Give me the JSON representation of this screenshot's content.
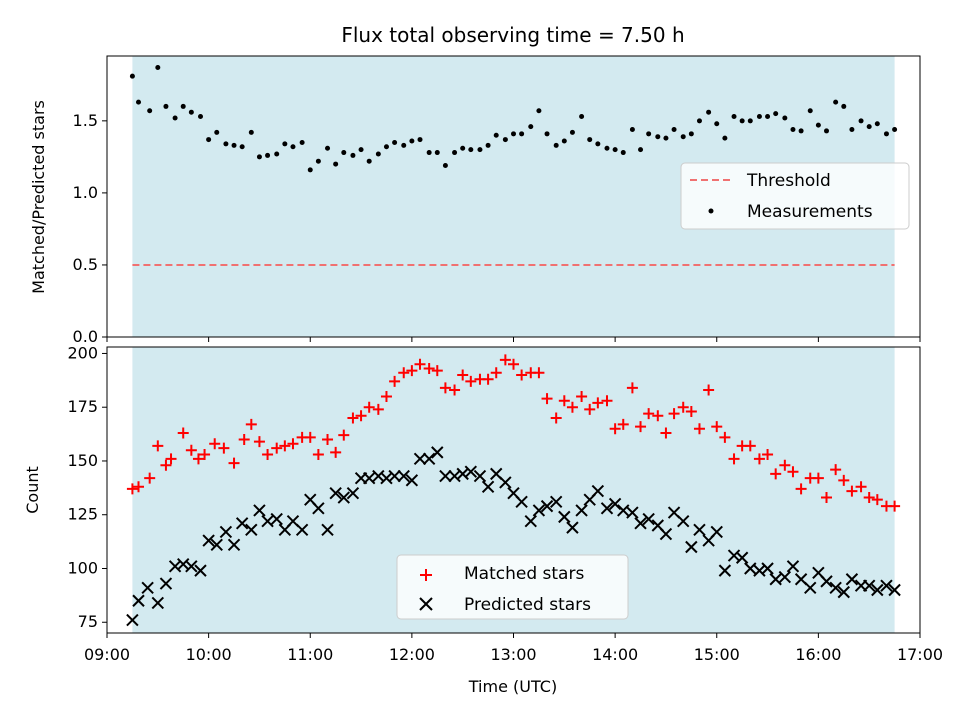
{
  "chart_data": [
    {
      "type": "scatter",
      "title": "Flux total observing time = 7.50 h",
      "ylabel": "Matched/Predicted stars",
      "ylim": [
        0,
        1.95
      ],
      "yticks": [
        0.0,
        0.5,
        1.0,
        1.5
      ],
      "ytick_labels": [
        "0.0",
        "0.5",
        "1.0",
        "1.5"
      ],
      "xlim": [
        9.0,
        17.0
      ],
      "shaded_span": [
        9.25,
        16.75
      ],
      "shade_color": "#d3eaf0",
      "legend_position": "center-right",
      "series": [
        {
          "name": "Threshold",
          "style": "dashed-line",
          "color": "#f07171",
          "x": [
            9.25,
            16.75
          ],
          "y": [
            0.5,
            0.5
          ]
        },
        {
          "name": "Measurements",
          "style": "dot",
          "color": "#000000",
          "x": [
            9.25,
            9.31,
            9.42,
            9.5,
            9.58,
            9.67,
            9.75,
            9.83,
            9.92,
            10.0,
            10.08,
            10.17,
            10.25,
            10.33,
            10.42,
            10.5,
            10.58,
            10.67,
            10.75,
            10.83,
            10.92,
            11.0,
            11.08,
            11.17,
            11.25,
            11.33,
            11.42,
            11.5,
            11.58,
            11.67,
            11.75,
            11.83,
            11.92,
            12.0,
            12.08,
            12.17,
            12.25,
            12.33,
            12.42,
            12.5,
            12.58,
            12.67,
            12.75,
            12.83,
            12.92,
            13.0,
            13.08,
            13.17,
            13.25,
            13.33,
            13.42,
            13.5,
            13.58,
            13.67,
            13.75,
            13.83,
            13.92,
            14.0,
            14.08,
            14.17,
            14.25,
            14.33,
            14.42,
            14.5,
            14.58,
            14.67,
            14.75,
            14.83,
            14.92,
            15.0,
            15.08,
            15.17,
            15.25,
            15.33,
            15.42,
            15.5,
            15.58,
            15.67,
            15.75,
            15.83,
            15.92,
            16.0,
            16.08,
            16.17,
            16.25,
            16.33,
            16.42,
            16.5,
            16.58,
            16.67,
            16.75
          ],
          "y": [
            1.81,
            1.63,
            1.57,
            1.87,
            1.6,
            1.52,
            1.6,
            1.56,
            1.53,
            1.37,
            1.42,
            1.34,
            1.33,
            1.32,
            1.42,
            1.25,
            1.26,
            1.27,
            1.34,
            1.32,
            1.35,
            1.16,
            1.22,
            1.31,
            1.2,
            1.28,
            1.26,
            1.3,
            1.22,
            1.27,
            1.32,
            1.35,
            1.33,
            1.36,
            1.37,
            1.28,
            1.28,
            1.19,
            1.28,
            1.31,
            1.3,
            1.3,
            1.33,
            1.4,
            1.37,
            1.41,
            1.41,
            1.46,
            1.57,
            1.41,
            1.33,
            1.36,
            1.42,
            1.53,
            1.37,
            1.34,
            1.31,
            1.3,
            1.28,
            1.44,
            1.3,
            1.41,
            1.39,
            1.38,
            1.44,
            1.39,
            1.41,
            1.5,
            1.56,
            1.48,
            1.38,
            1.53,
            1.5,
            1.5,
            1.53,
            1.53,
            1.55,
            1.52,
            1.44,
            1.43,
            1.57,
            1.47,
            1.43,
            1.63,
            1.6,
            1.44,
            1.5,
            1.46,
            1.48,
            1.41,
            1.44
          ]
        }
      ]
    },
    {
      "type": "scatter",
      "xlabel": "Time (UTC)",
      "ylabel": "Count",
      "ylim": [
        70,
        203
      ],
      "yticks": [
        75,
        100,
        125,
        150,
        175,
        200
      ],
      "ytick_labels": [
        "75",
        "100",
        "125",
        "150",
        "175",
        "200"
      ],
      "xlim": [
        9.0,
        17.0
      ],
      "xticks": [
        9,
        10,
        11,
        12,
        13,
        14,
        15,
        16,
        17
      ],
      "xtick_labels": [
        "09:00",
        "10:00",
        "11:00",
        "12:00",
        "13:00",
        "14:00",
        "15:00",
        "16:00",
        "17:00"
      ],
      "shaded_span": [
        9.25,
        16.75
      ],
      "shade_color": "#d3eaf0",
      "legend_position": "lower-center",
      "series": [
        {
          "name": "Matched stars",
          "marker": "plus",
          "color": "#ff0000",
          "x": [
            9.25,
            9.31,
            9.42,
            9.5,
            9.58,
            9.63,
            9.75,
            9.83,
            9.9,
            9.96,
            10.06,
            10.15,
            10.25,
            10.35,
            10.42,
            10.5,
            10.58,
            10.67,
            10.75,
            10.83,
            10.92,
            11.0,
            11.08,
            11.17,
            11.25,
            11.33,
            11.42,
            11.5,
            11.58,
            11.67,
            11.75,
            11.83,
            11.92,
            12.0,
            12.08,
            12.17,
            12.25,
            12.33,
            12.42,
            12.5,
            12.58,
            12.67,
            12.75,
            12.83,
            12.92,
            13.0,
            13.08,
            13.17,
            13.25,
            13.33,
            13.42,
            13.5,
            13.58,
            13.67,
            13.75,
            13.83,
            13.92,
            14.0,
            14.08,
            14.17,
            14.25,
            14.33,
            14.42,
            14.5,
            14.58,
            14.67,
            14.75,
            14.83,
            14.92,
            15.0,
            15.08,
            15.17,
            15.25,
            15.33,
            15.42,
            15.5,
            15.58,
            15.67,
            15.75,
            15.83,
            15.92,
            16.0,
            16.08,
            16.17,
            16.25,
            16.33,
            16.42,
            16.5,
            16.58,
            16.67,
            16.75
          ],
          "y": [
            137,
            138,
            142,
            157,
            148,
            151,
            163,
            155,
            151,
            153,
            158,
            156,
            149,
            160,
            167,
            159,
            153,
            156,
            157,
            158,
            161,
            161,
            153,
            160,
            154,
            162,
            170,
            171,
            175,
            174,
            180,
            187,
            191,
            192,
            195,
            193,
            192,
            184,
            183,
            190,
            187,
            188,
            188,
            191,
            197,
            195,
            190,
            191,
            191,
            179,
            170,
            178,
            175,
            180,
            174,
            177,
            178,
            165,
            167,
            184,
            166,
            172,
            171,
            163,
            172,
            175,
            173,
            165,
            183,
            166,
            161,
            151,
            157,
            157,
            151,
            153,
            144,
            148,
            145,
            137,
            142,
            142,
            133,
            146,
            141,
            136,
            138,
            133,
            132,
            129,
            129
          ]
        },
        {
          "name": "Predicted stars",
          "marker": "x",
          "color": "#000000",
          "x": [
            9.25,
            9.31,
            9.4,
            9.5,
            9.58,
            9.67,
            9.75,
            9.83,
            9.92,
            10.0,
            10.08,
            10.17,
            10.25,
            10.33,
            10.42,
            10.5,
            10.58,
            10.67,
            10.75,
            10.83,
            10.92,
            11.0,
            11.08,
            11.17,
            11.25,
            11.33,
            11.42,
            11.5,
            11.58,
            11.67,
            11.75,
            11.83,
            11.92,
            12.0,
            12.08,
            12.17,
            12.25,
            12.33,
            12.42,
            12.5,
            12.58,
            12.67,
            12.75,
            12.83,
            12.92,
            13.0,
            13.08,
            13.17,
            13.25,
            13.33,
            13.42,
            13.5,
            13.58,
            13.67,
            13.75,
            13.83,
            13.92,
            14.0,
            14.08,
            14.17,
            14.25,
            14.33,
            14.42,
            14.5,
            14.58,
            14.67,
            14.75,
            14.83,
            14.92,
            15.0,
            15.08,
            15.17,
            15.25,
            15.33,
            15.42,
            15.5,
            15.58,
            15.67,
            15.75,
            15.83,
            15.92,
            16.0,
            16.08,
            16.17,
            16.25,
            16.33,
            16.42,
            16.5,
            16.58,
            16.67,
            16.75
          ],
          "y": [
            76,
            85,
            91,
            84,
            93,
            101,
            102,
            101,
            99,
            113,
            111,
            117,
            111,
            121,
            118,
            127,
            122,
            123,
            118,
            122,
            118,
            132,
            128,
            118,
            135,
            133,
            135,
            142,
            142,
            143,
            142,
            143,
            143,
            141,
            151,
            151,
            154,
            143,
            143,
            144,
            145,
            143,
            138,
            144,
            140,
            135,
            131,
            122,
            127,
            129,
            131,
            124,
            119,
            127,
            132,
            136,
            128,
            130,
            127,
            126,
            121,
            123,
            120,
            116,
            126,
            122,
            110,
            118,
            113,
            117,
            99,
            106,
            105,
            100,
            99,
            100,
            95,
            96,
            101,
            95,
            91,
            98,
            94,
            91,
            89,
            95,
            92,
            92,
            90,
            92,
            90
          ]
        }
      ]
    }
  ]
}
